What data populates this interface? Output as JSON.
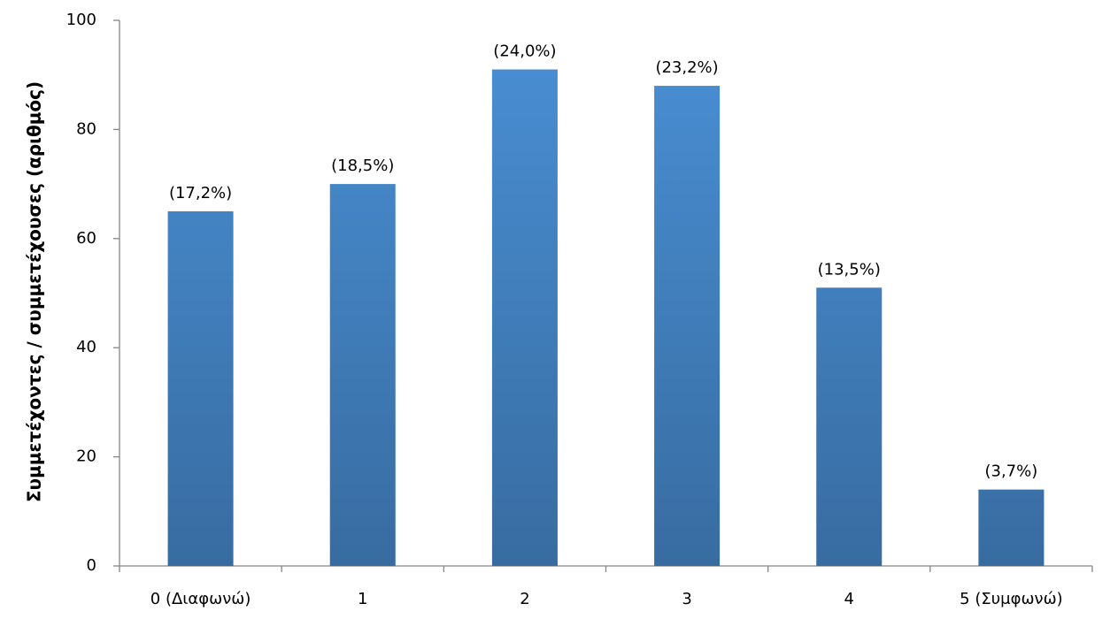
{
  "chart_data": {
    "type": "bar",
    "y_label": "Συμμετέχοντες / συμμετέχουσες (αριθμός)",
    "categories": [
      "0 (Διαφωνώ)",
      "1",
      "2",
      "3",
      "4",
      "5 (Συμφωνώ)"
    ],
    "values": [
      65,
      70,
      91,
      88,
      51,
      14
    ],
    "value_labels": [
      "(17,2%)",
      "(18,5%)",
      "(24,0%)",
      "(23,2%)",
      "(13,5%)",
      "(3,7%)"
    ],
    "color": "#4a90d6",
    "ylim": [
      0,
      100
    ],
    "yticks": [
      0,
      20,
      40,
      60,
      80,
      100
    ],
    "grid": false
  }
}
